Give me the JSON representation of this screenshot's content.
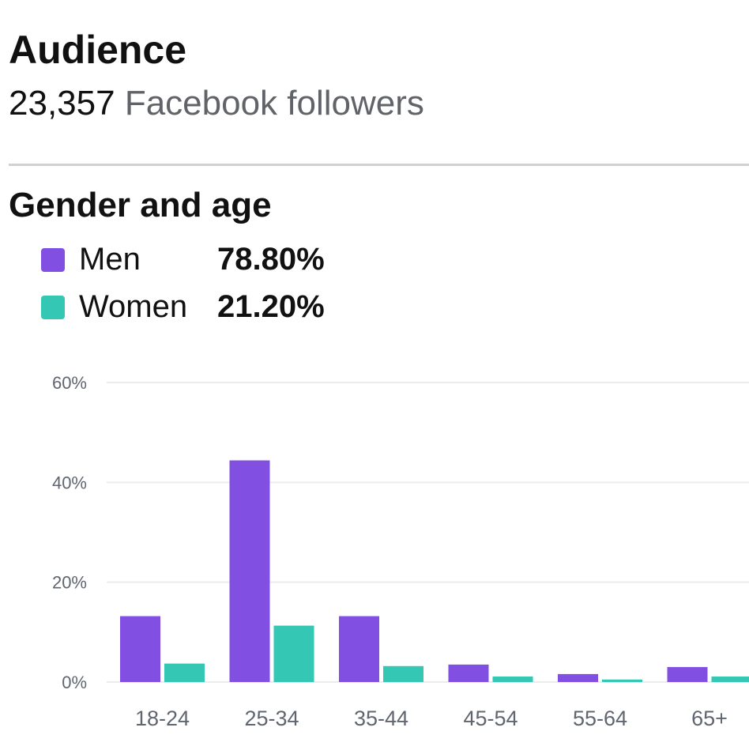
{
  "header": {
    "title": "Audience",
    "follower_count": "23,357",
    "follower_label": "Facebook followers"
  },
  "section_title": "Gender and age",
  "legend": [
    {
      "name": "Men",
      "value": "78.80%",
      "color": "#8150e3"
    },
    {
      "name": "Women",
      "value": "21.20%",
      "color": "#33c7b4"
    }
  ],
  "chart_data": {
    "type": "bar",
    "categories": [
      "18-24",
      "25-34",
      "35-44",
      "45-54",
      "55-64",
      "65+"
    ],
    "series": [
      {
        "name": "Men",
        "color": "#8150e3",
        "values": [
          13.2,
          44.4,
          13.2,
          3.5,
          1.6,
          3.0
        ]
      },
      {
        "name": "Women",
        "color": "#33c7b4",
        "values": [
          3.7,
          11.3,
          3.2,
          1.1,
          0.5,
          1.1
        ]
      }
    ],
    "yticks": [
      "0%",
      "20%",
      "40%",
      "60%"
    ],
    "ytick_values": [
      0,
      20,
      40,
      60
    ],
    "ylim": [
      0,
      60
    ],
    "grid": true
  }
}
